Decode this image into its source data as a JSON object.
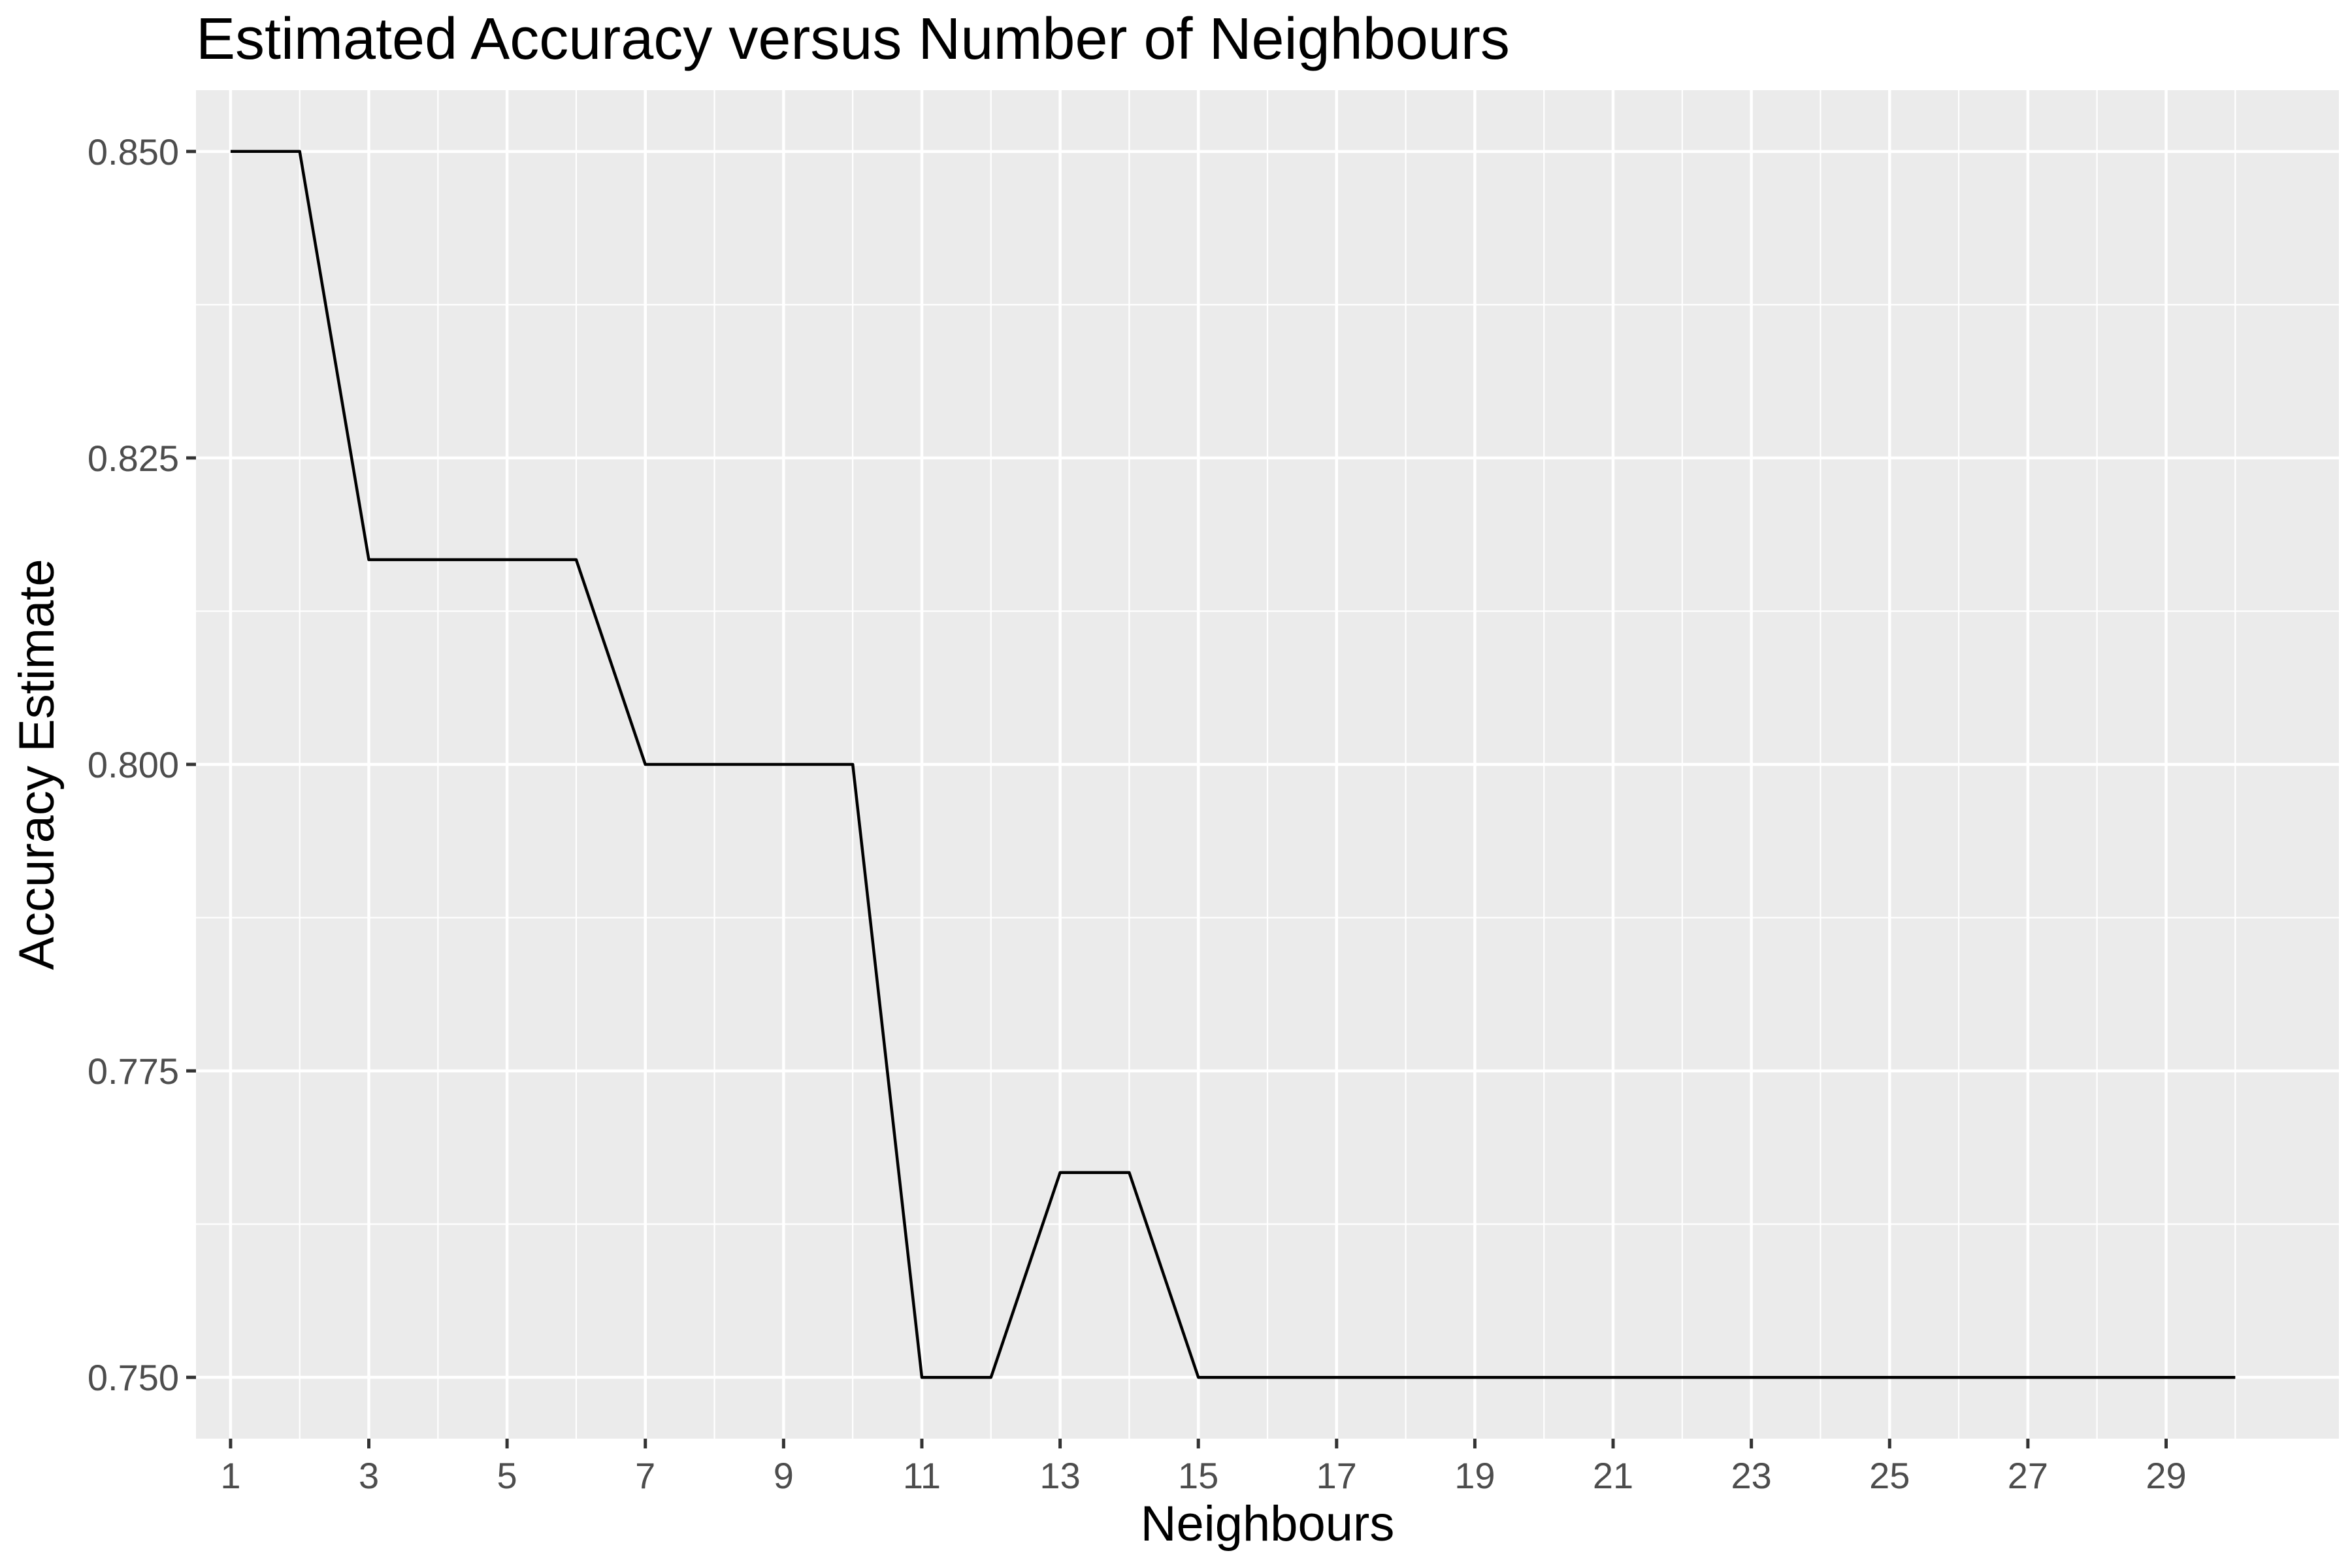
{
  "chart_data": {
    "type": "line",
    "title": "Estimated Accuracy versus Number of Neighbours",
    "xlabel": "Neighbours",
    "ylabel": "Accuracy Estimate",
    "xlim": [
      0.5,
      31.5
    ],
    "ylim": [
      0.745,
      0.855
    ],
    "x_ticks": [
      1,
      3,
      5,
      7,
      9,
      11,
      13,
      15,
      17,
      19,
      21,
      23,
      25,
      27,
      29
    ],
    "x_tick_labels": [
      "1",
      "3",
      "5",
      "7",
      "9",
      "11",
      "13",
      "15",
      "17",
      "19",
      "21",
      "23",
      "25",
      "27",
      "29"
    ],
    "y_ticks": [
      0.75,
      0.775,
      0.8,
      0.825,
      0.85
    ],
    "y_tick_labels": [
      "0.750",
      "0.775",
      "0.800",
      "0.825",
      "0.850"
    ],
    "grid": true,
    "panel_background": "#ebebeb",
    "line_color": "#000000",
    "series": [
      {
        "x": [
          1,
          2,
          3,
          4,
          5,
          6,
          7,
          8,
          9,
          10,
          11,
          12,
          13,
          14,
          15,
          16,
          17,
          18,
          19,
          20,
          21,
          22,
          23,
          24,
          25,
          26,
          27,
          28,
          29,
          30
        ],
        "values": [
          0.85,
          0.85,
          0.8167,
          0.8167,
          0.8167,
          0.8167,
          0.8,
          0.8,
          0.8,
          0.8,
          0.75,
          0.75,
          0.7667,
          0.7667,
          0.75,
          0.75,
          0.75,
          0.75,
          0.75,
          0.75,
          0.75,
          0.75,
          0.75,
          0.75,
          0.75,
          0.75,
          0.75,
          0.75,
          0.75,
          0.75
        ]
      }
    ]
  }
}
